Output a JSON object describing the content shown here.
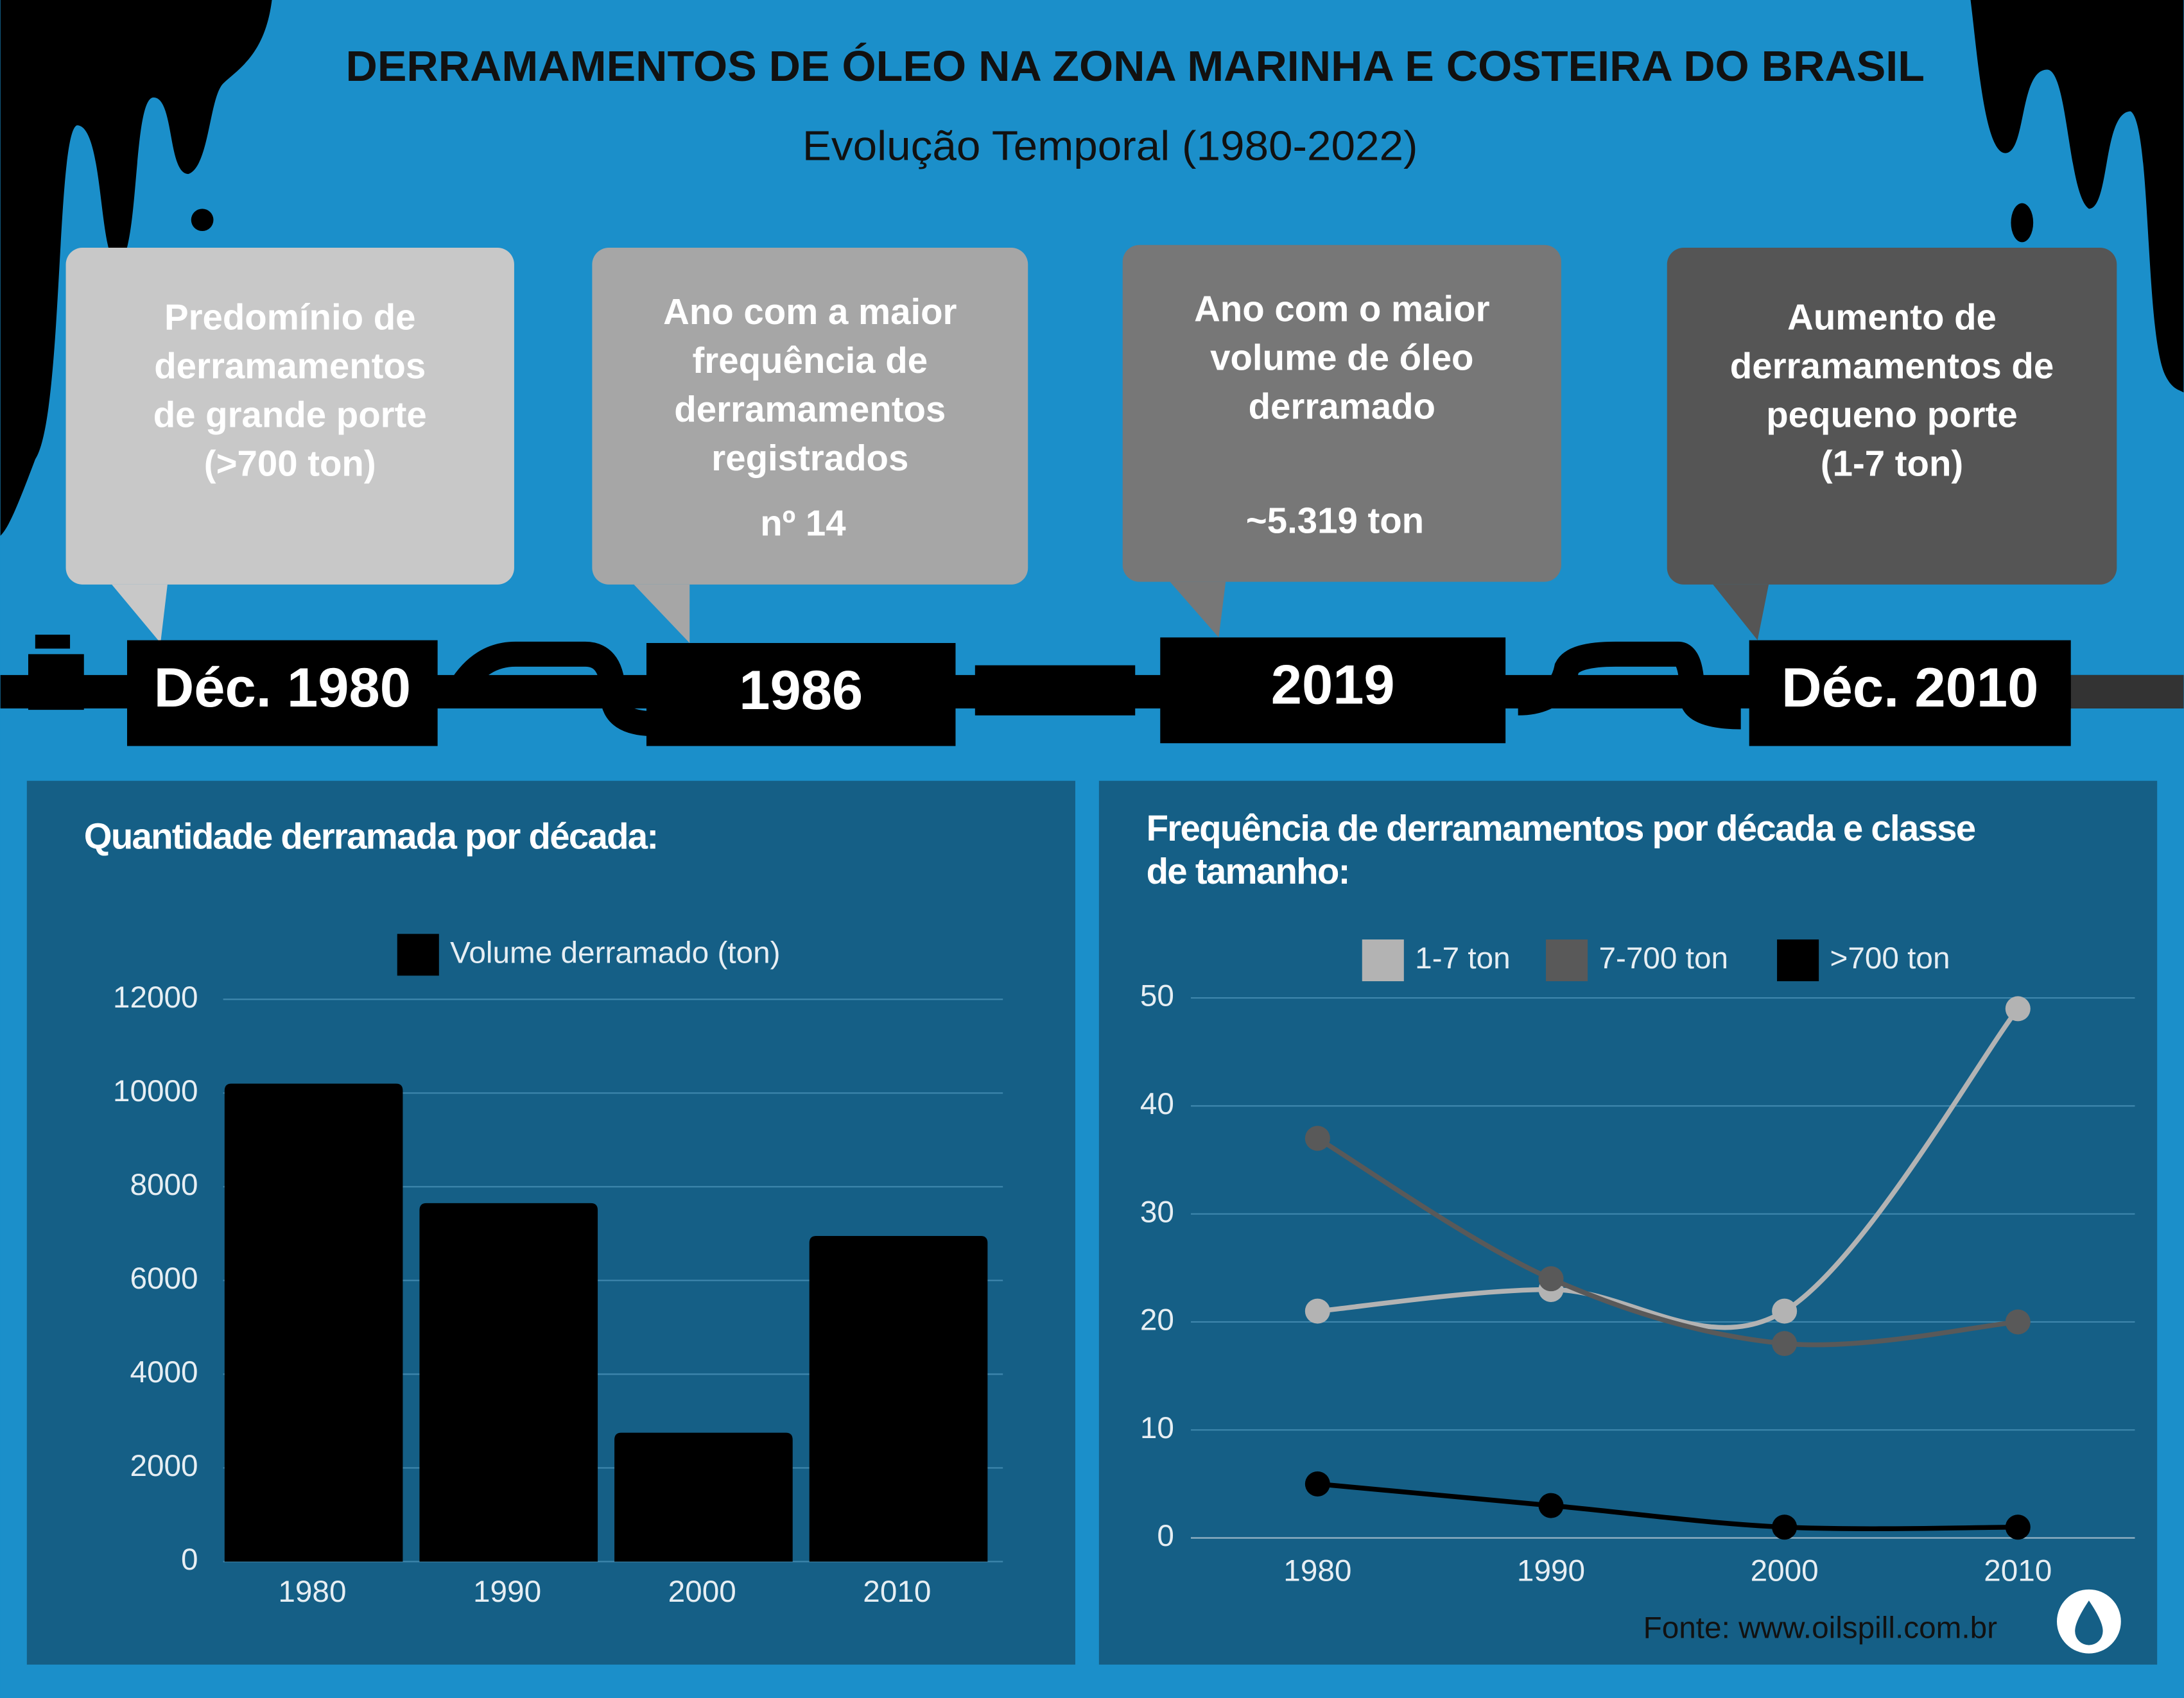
{
  "header": {
    "title": "DERRAMAMENTOS DE ÓLEO NA ZONA MARINHA  E COSTEIRA DO BRASIL",
    "subtitle": "Evolução Temporal (1980-2022)"
  },
  "callouts": [
    {
      "lines": [
        "Predomínio de",
        "derramamentos",
        "de grande porte",
        "(>700 ton)"
      ],
      "label": "Déc. 1980"
    },
    {
      "lines": [
        "Ano com a maior",
        "frequência de",
        "derramamentos",
        "registrados"
      ],
      "value": "nº 14",
      "label": "1986"
    },
    {
      "lines": [
        "Ano com o maior",
        "volume de óleo",
        "derramado"
      ],
      "value": "~5.319 ton",
      "label": "2019"
    },
    {
      "lines": [
        "Aumento de",
        "derramamentos de",
        "pequeno porte",
        "(1-7 ton)"
      ],
      "label": "Déc. 2010"
    }
  ],
  "source": "Fonte: www.oilspill.com.br",
  "chart_data": [
    {
      "type": "bar",
      "title": "Quantidade derramada por década:",
      "categories": [
        "1980",
        "1990",
        "2000",
        "2010"
      ],
      "series": [
        {
          "name": "Volume derramado (ton)",
          "color": "#000000",
          "values": [
            10200,
            7650,
            2750,
            6950
          ]
        }
      ],
      "ylim": [
        0,
        12000
      ],
      "yticks": [
        0,
        2000,
        4000,
        6000,
        8000,
        10000,
        12000
      ],
      "grid": true
    },
    {
      "type": "line",
      "title": "Frequência de derramamentos por década e classe de tamanho:",
      "categories": [
        "1980",
        "1990",
        "2000",
        "2010"
      ],
      "series": [
        {
          "name": "1-7 ton",
          "color": "#b3b3b3",
          "values": [
            21,
            23,
            21,
            49
          ]
        },
        {
          "name": "7-700 ton",
          "color": "#595959",
          "values": [
            37,
            24,
            18,
            20
          ]
        },
        {
          "name": ">700 ton",
          "color": "#000000",
          "values": [
            5,
            3,
            1,
            1
          ]
        }
      ],
      "ylim": [
        0,
        50
      ],
      "yticks": [
        0,
        10,
        20,
        30,
        40,
        50
      ],
      "grid": true
    }
  ]
}
